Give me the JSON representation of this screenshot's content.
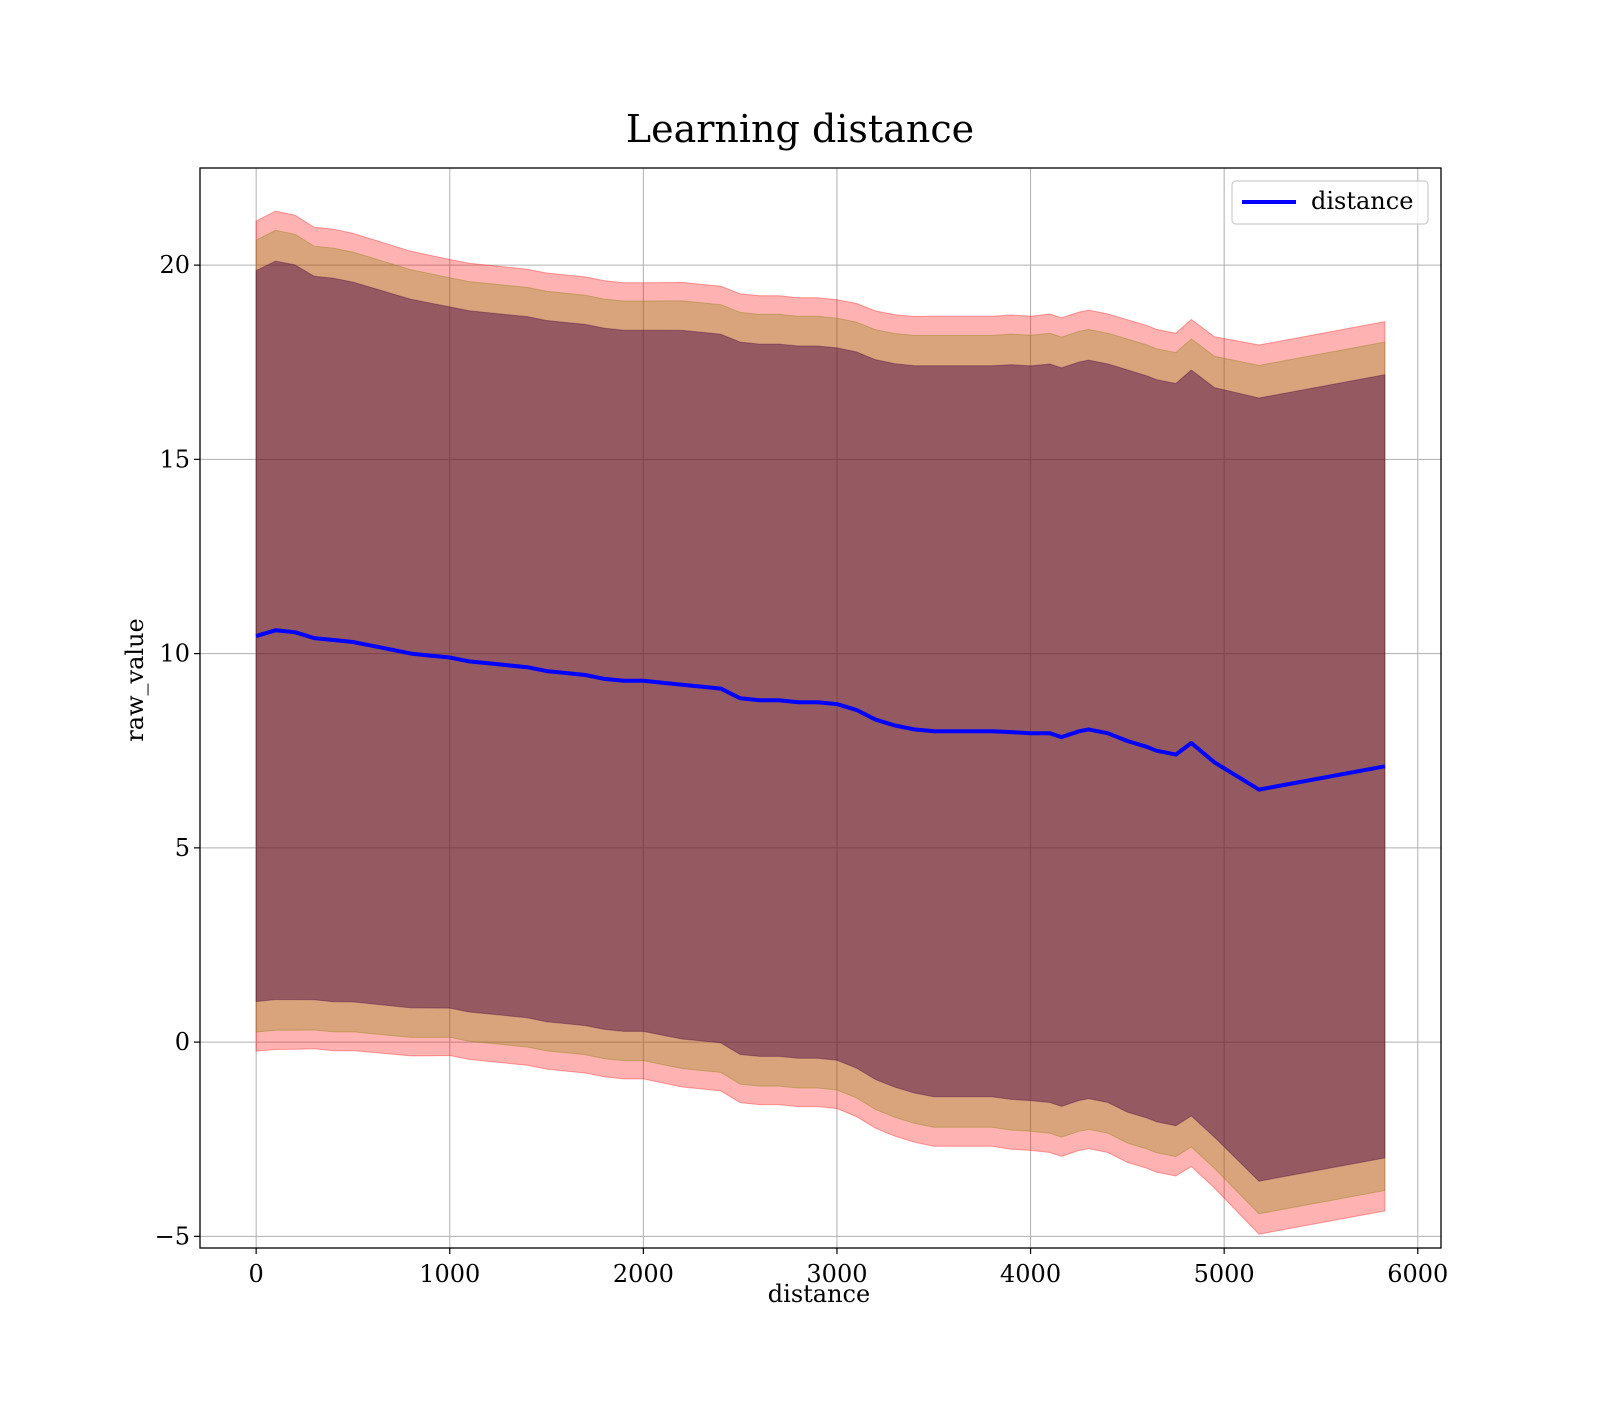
{
  "chart_data": {
    "type": "area",
    "title": "Learning distance",
    "xlabel": "distance",
    "ylabel": "raw_value",
    "xlim": [
      -290,
      6120
    ],
    "ylim": [
      -5.3,
      22.5
    ],
    "xticks": [
      0,
      1000,
      2000,
      3000,
      4000,
      5000,
      6000
    ],
    "yticks": [
      -5,
      0,
      5,
      10,
      15,
      20
    ],
    "ytick_labels": [
      "−5",
      "0",
      "5",
      "10",
      "15",
      "20"
    ],
    "grid": true,
    "legend": {
      "position": "top-right",
      "entries": [
        "distance"
      ]
    },
    "colors": {
      "line": "#0000ff",
      "band_outer": "#ff0000",
      "band_middle": "#808000",
      "band_inner": "#400040",
      "grid": "#b0b0b0"
    },
    "series": [
      {
        "name": "distance",
        "x": [
          0,
          100,
          200,
          300,
          400,
          500,
          600,
          700,
          800,
          900,
          1000,
          1100,
          1200,
          1300,
          1400,
          1500,
          1600,
          1700,
          1800,
          1900,
          2000,
          2100,
          2200,
          2300,
          2400,
          2500,
          2600,
          2700,
          2800,
          2900,
          3000,
          3100,
          3200,
          3300,
          3400,
          3500,
          3600,
          3700,
          3800,
          3900,
          4000,
          4100,
          4160,
          4250,
          4300,
          4400,
          4500,
          4600,
          4650,
          4750,
          4830,
          4950,
          5180,
          5830
        ],
        "y": [
          10.45,
          10.6,
          10.55,
          10.4,
          10.35,
          10.3,
          10.2,
          10.1,
          10.0,
          9.95,
          9.9,
          9.8,
          9.75,
          9.7,
          9.65,
          9.55,
          9.5,
          9.45,
          9.35,
          9.3,
          9.3,
          9.25,
          9.2,
          9.15,
          9.1,
          8.85,
          8.8,
          8.8,
          8.75,
          8.75,
          8.7,
          8.55,
          8.3,
          8.15,
          8.05,
          8.0,
          8.0,
          8.0,
          8.0,
          7.98,
          7.95,
          7.95,
          7.85,
          8.0,
          8.05,
          7.95,
          7.75,
          7.6,
          7.5,
          7.4,
          7.7,
          7.2,
          6.5,
          7.1
        ],
        "y_std": [
          9.8,
          9.9,
          9.85,
          9.7,
          9.7,
          9.65,
          9.6,
          9.55,
          9.5,
          9.45,
          9.4,
          9.4,
          9.4,
          9.4,
          9.4,
          9.4,
          9.4,
          9.4,
          9.4,
          9.4,
          9.4,
          9.45,
          9.5,
          9.5,
          9.5,
          9.55,
          9.55,
          9.55,
          9.55,
          9.55,
          9.55,
          9.6,
          9.65,
          9.7,
          9.75,
          9.8,
          9.8,
          9.8,
          9.8,
          9.85,
          9.85,
          9.9,
          9.9,
          9.9,
          9.9,
          9.9,
          9.95,
          9.95,
          9.95,
          9.95,
          10.0,
          10.05,
          10.5,
          10.5
        ]
      }
    ],
    "bands": [
      {
        "scale": 1.09,
        "color": "#ff0000",
        "alpha": 0.3
      },
      {
        "scale": 1.04,
        "color": "#808000",
        "alpha": 0.3
      },
      {
        "scale": 0.96,
        "color": "#400040",
        "alpha": 0.45
      }
    ]
  }
}
